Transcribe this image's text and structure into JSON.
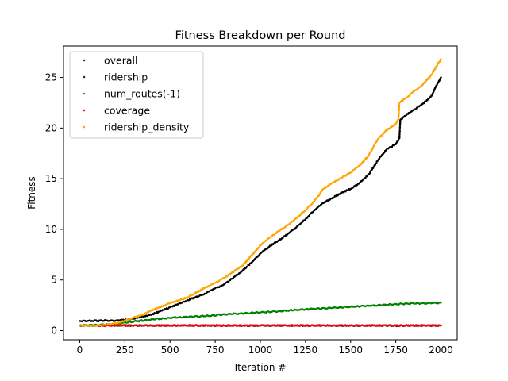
{
  "chart_data": {
    "type": "scatter",
    "title": "Fitness Breakdown per Round",
    "xlabel": "Iteration #",
    "ylabel": "Fitness",
    "xlim": [
      -90,
      2090
    ],
    "ylim": [
      -0.9,
      28.1
    ],
    "xticks": [
      0,
      250,
      500,
      750,
      1000,
      1250,
      1500,
      1750,
      2000
    ],
    "yticks": [
      0,
      5,
      10,
      15,
      20,
      25
    ],
    "grid": false,
    "legend_position": "top-left",
    "series": [
      {
        "name": "overall",
        "color": "#000000",
        "legend_color": "#1f2f66",
        "x": [
          0,
          100,
          200,
          250,
          300,
          350,
          400,
          500,
          600,
          700,
          800,
          850,
          900,
          950,
          1000,
          1050,
          1100,
          1150,
          1200,
          1250,
          1300,
          1350,
          1400,
          1450,
          1500,
          1550,
          1600,
          1650,
          1700,
          1750,
          1770,
          1775,
          1800,
          1850,
          1900,
          1950,
          1975,
          2000
        ],
        "y": [
          0.95,
          0.97,
          1.0,
          1.05,
          1.2,
          1.4,
          1.6,
          2.3,
          3.0,
          3.7,
          4.6,
          5.2,
          5.9,
          6.7,
          7.6,
          8.3,
          8.9,
          9.5,
          10.2,
          11.0,
          11.9,
          12.6,
          13.1,
          13.6,
          14.0,
          14.6,
          15.4,
          16.8,
          17.9,
          18.4,
          19.0,
          20.8,
          21.2,
          21.8,
          22.4,
          23.2,
          24.2,
          25.0
        ]
      },
      {
        "name": "ridership",
        "color": "#1f2f66",
        "legend_color": "#1f2f66",
        "x": [
          0,
          100,
          200,
          300,
          400,
          500,
          600,
          700,
          800,
          900,
          1000,
          1100,
          1200,
          1300,
          1400,
          1500,
          1600,
          1700,
          1800,
          1900,
          2000
        ],
        "y": [
          0.5,
          0.5,
          0.5,
          0.5,
          0.5,
          0.5,
          0.5,
          0.5,
          0.5,
          0.5,
          0.5,
          0.5,
          0.5,
          0.5,
          0.5,
          0.5,
          0.5,
          0.5,
          0.5,
          0.5,
          0.5
        ]
      },
      {
        "name": "num_routes(-1)",
        "color": "#008000",
        "legend_color": "#2ca02c",
        "x": [
          0,
          100,
          200,
          300,
          400,
          500,
          600,
          700,
          800,
          900,
          1000,
          1100,
          1200,
          1300,
          1400,
          1500,
          1600,
          1700,
          1800,
          1900,
          2000
        ],
        "y": [
          0.5,
          0.55,
          0.65,
          0.9,
          1.1,
          1.25,
          1.35,
          1.45,
          1.6,
          1.7,
          1.8,
          1.9,
          2.05,
          2.15,
          2.25,
          2.35,
          2.45,
          2.55,
          2.65,
          2.7,
          2.75
        ]
      },
      {
        "name": "coverage",
        "color": "#ff0000",
        "legend_color": "#d62728",
        "x": [
          0,
          100,
          200,
          300,
          400,
          500,
          600,
          700,
          800,
          900,
          1000,
          1100,
          1200,
          1300,
          1400,
          1500,
          1600,
          1700,
          1800,
          1900,
          2000
        ],
        "y": [
          0.5,
          0.5,
          0.5,
          0.5,
          0.5,
          0.5,
          0.5,
          0.5,
          0.5,
          0.5,
          0.5,
          0.5,
          0.5,
          0.5,
          0.5,
          0.5,
          0.5,
          0.5,
          0.5,
          0.5,
          0.5
        ]
      },
      {
        "name": "ridership_density",
        "color": "#ffa500",
        "legend_color": "#ffa500",
        "x": [
          0,
          100,
          200,
          250,
          300,
          350,
          400,
          500,
          600,
          700,
          800,
          900,
          950,
          1000,
          1050,
          1100,
          1150,
          1200,
          1250,
          1300,
          1350,
          1400,
          1450,
          1500,
          1550,
          1600,
          1650,
          1700,
          1750,
          1765,
          1770,
          1800,
          1850,
          1900,
          1950,
          1975,
          2000
        ],
        "y": [
          0.5,
          0.5,
          0.7,
          1.0,
          1.3,
          1.6,
          2.0,
          2.7,
          3.3,
          4.3,
          5.2,
          6.4,
          7.4,
          8.4,
          9.2,
          9.8,
          10.4,
          11.1,
          11.9,
          12.8,
          14.0,
          14.6,
          15.1,
          15.6,
          16.3,
          17.3,
          18.9,
          19.8,
          20.4,
          20.9,
          22.5,
          22.9,
          23.6,
          24.3,
          25.3,
          26.1,
          26.8
        ]
      }
    ]
  }
}
